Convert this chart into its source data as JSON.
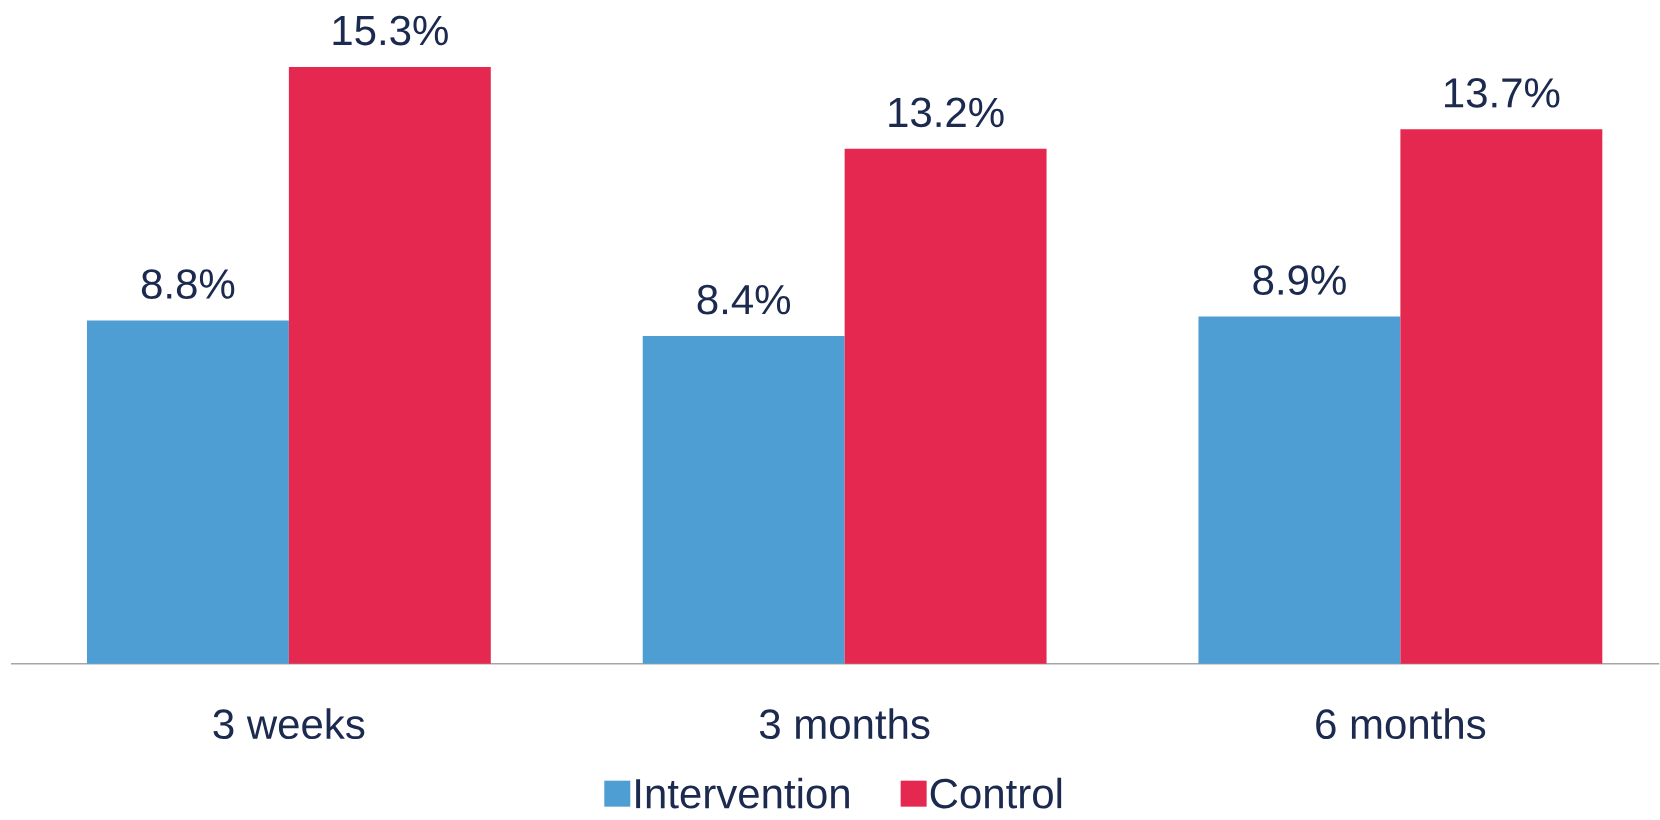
{
  "chart_data": {
    "type": "bar",
    "categories": [
      "3 weeks",
      "3 months",
      "6 months"
    ],
    "series": [
      {
        "name": "Intervention",
        "color": "#4e9dd3",
        "values": [
          8.8,
          8.4,
          8.9
        ],
        "value_labels": [
          "8.8%",
          "8.4%",
          "8.9%"
        ]
      },
      {
        "name": "Control",
        "color": "#e5284f",
        "values": [
          15.3,
          13.2,
          13.7
        ],
        "value_labels": [
          "15.3%",
          "13.2%",
          "13.7%"
        ]
      }
    ],
    "legend": "bottom",
    "tick_labels": "x"
  }
}
